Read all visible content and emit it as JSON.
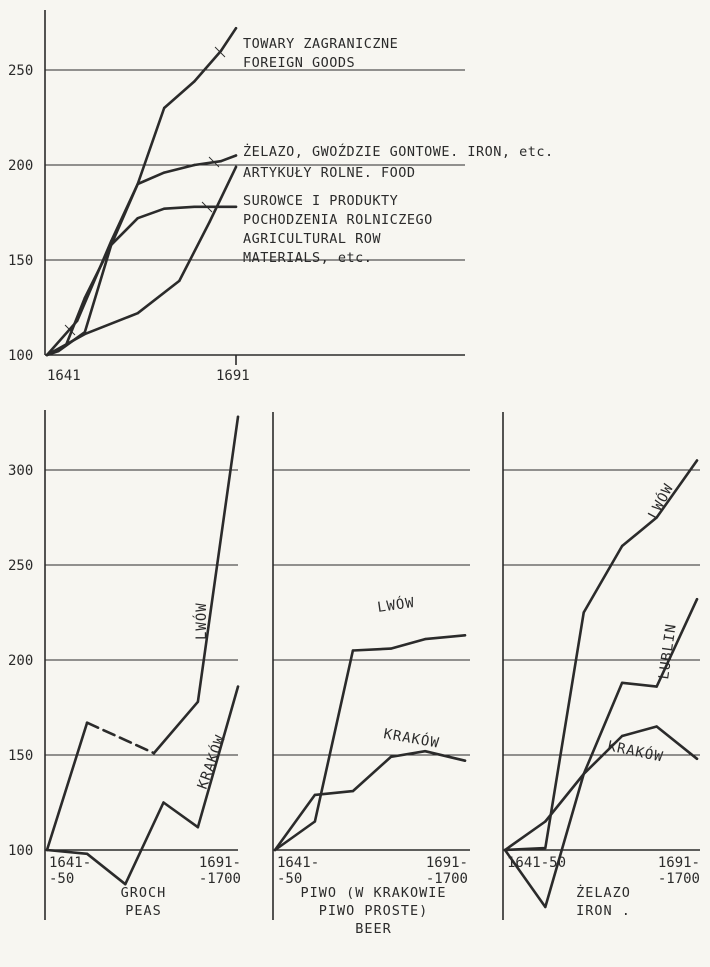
{
  "chart_data": [
    {
      "id": "top",
      "type": "line",
      "x_ticks": [
        "1641",
        "1691"
      ],
      "yticks": [
        100,
        150,
        200,
        250
      ],
      "ylim": [
        100,
        275
      ],
      "xlim": [
        1641,
        1691
      ],
      "grid": true,
      "series": [
        {
          "name": "TOWARY ZAGRANICZNE / FOREIGN GOODS",
          "label_lines": [
            "TOWARY ZAGRANICZNE",
            "FOREIGN GOODS"
          ],
          "x": [
            1641,
            1644,
            1651,
            1658,
            1665,
            1672,
            1680,
            1687,
            1691
          ],
          "y": [
            100,
            102,
            112,
            158,
            190,
            230,
            244,
            260,
            272
          ]
        },
        {
          "name": "ŻELAZO, GWOŹDZIE GONTOWE. IRON, etc.",
          "label_lines": [
            "ŻELAZO, GWOŹDZIE GONTOWE. IRON, etc."
          ],
          "x": [
            1641,
            1649,
            1658,
            1665,
            1672,
            1680,
            1687,
            1691
          ],
          "y": [
            100,
            118,
            160,
            190,
            196,
            200,
            202,
            205
          ]
        },
        {
          "name": "ARTYKUŁY ROLNE. FOOD",
          "label_lines": [
            "ARTYKUŁY ROLNE. FOOD"
          ],
          "x": [
            1641,
            1651,
            1665,
            1676,
            1684,
            1691
          ],
          "y": [
            100,
            111,
            122,
            139,
            170,
            199
          ]
        },
        {
          "name": "SUROWCE I PRODUKTY POCHODZENIA ROLNICZEGO / AGRICULTURAL ROW MATERIALS, etc.",
          "label_lines": [
            "SUROWCE I PRODUKTY",
            "POCHODZENIA ROLNICZEGO",
            "AGRICULTURAL ROW",
            "MATERIALS, etc."
          ],
          "x": [
            1641,
            1646,
            1651,
            1658,
            1665,
            1672,
            1680,
            1687,
            1691
          ],
          "y": [
            100,
            105,
            130,
            158,
            172,
            177,
            178,
            178,
            178
          ]
        }
      ]
    },
    {
      "id": "peas",
      "type": "line",
      "x_ticks": [
        "1641-\n-50",
        "1691-\n-1700"
      ],
      "yticks": [
        100,
        150,
        200,
        250,
        300
      ],
      "ylim": [
        100,
        330
      ],
      "xlim": [
        0,
        100
      ],
      "grid": true,
      "caption": [
        "GROCH",
        "PEAS"
      ],
      "series": [
        {
          "name": "LWÓW",
          "x": [
            0,
            21,
            56,
            79,
            100
          ],
          "y": [
            100,
            167,
            151,
            178,
            328
          ],
          "dashed_segment": [
            1,
            2
          ]
        },
        {
          "name": "KRAKÓW",
          "x": [
            0,
            21,
            41,
            61,
            79,
            100
          ],
          "y": [
            100,
            98,
            82,
            125,
            112,
            186
          ]
        }
      ]
    },
    {
      "id": "beer",
      "type": "line",
      "x_ticks": [
        "1641-\n-50",
        "1691-\n-1700"
      ],
      "yticks": [
        100,
        150,
        200,
        250,
        300
      ],
      "ylim": [
        100,
        330
      ],
      "xlim": [
        0,
        100
      ],
      "grid": true,
      "caption": [
        "PIWO (W KRAKOWIE",
        "PIWO PROSTE)",
        "BEER"
      ],
      "series": [
        {
          "name": "LWÓW",
          "x": [
            0,
            21,
            41,
            61,
            79,
            100
          ],
          "y": [
            100,
            115,
            205,
            206,
            211,
            213
          ]
        },
        {
          "name": "KRAKÓW",
          "x": [
            0,
            21,
            41,
            61,
            79,
            100
          ],
          "y": [
            100,
            129,
            131,
            149,
            152,
            147
          ]
        }
      ]
    },
    {
      "id": "iron",
      "type": "line",
      "x_ticks": [
        "1641-50",
        "1691-\n-1700"
      ],
      "yticks": [
        100,
        150,
        200,
        250,
        300
      ],
      "ylim": [
        100,
        330
      ],
      "xlim": [
        0,
        100
      ],
      "grid": true,
      "caption": [
        "ŻELAZO",
        "IRON ."
      ],
      "series": [
        {
          "name": "LWÓW",
          "x": [
            0,
            21,
            41,
            61,
            79,
            100
          ],
          "y": [
            100,
            101,
            225,
            260,
            275,
            305
          ]
        },
        {
          "name": "LUBLIN",
          "x": [
            0,
            21,
            41,
            61,
            79,
            100
          ],
          "y": [
            100,
            70,
            140,
            188,
            186,
            232
          ]
        },
        {
          "name": "KRAKÓW",
          "x": [
            0,
            21,
            41,
            61,
            79,
            100
          ],
          "y": [
            100,
            115,
            140,
            160,
            165,
            148
          ]
        }
      ]
    }
  ]
}
